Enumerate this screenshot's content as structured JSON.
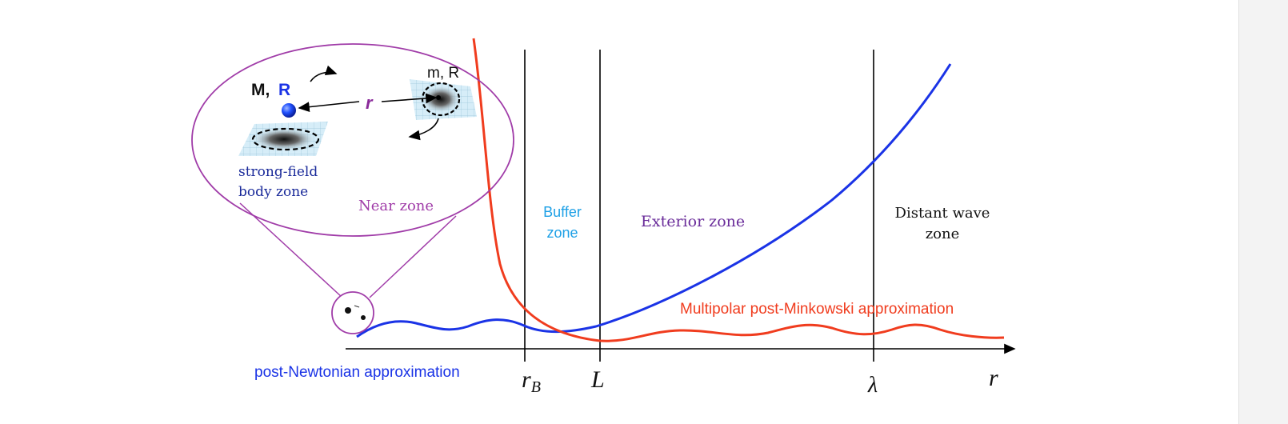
{
  "labels": {
    "mass_big": "M,",
    "radius_big": "R",
    "mass_small": "m, R",
    "separation": "r",
    "strong_field_line1": "strong-field",
    "strong_field_line2": "body zone",
    "near_zone": "Near zone",
    "buffer_zone_line1": "Buffer",
    "buffer_zone_line2": "zone",
    "exterior_zone": "Exterior zone",
    "distant_zone_line1": "Distant wave",
    "distant_zone_line2": "zone",
    "multipolar": "Multipolar post-Minkowski approximation",
    "post_newtonian": "post-Newtonian approximation"
  },
  "axis": {
    "tick_rB_main": "r",
    "tick_rB_sub": "B",
    "tick_L": "L",
    "tick_lambda": "λ",
    "axis_label": "r"
  },
  "colors": {
    "blue_curve": "#1a33e6",
    "red_curve": "#f03c1e",
    "purple": "#a03ca8",
    "buffer_text": "#1ea0e6",
    "exterior_text": "#6a2c9a",
    "dark_blue_text": "#1a2a9a",
    "line": "#000000"
  }
}
